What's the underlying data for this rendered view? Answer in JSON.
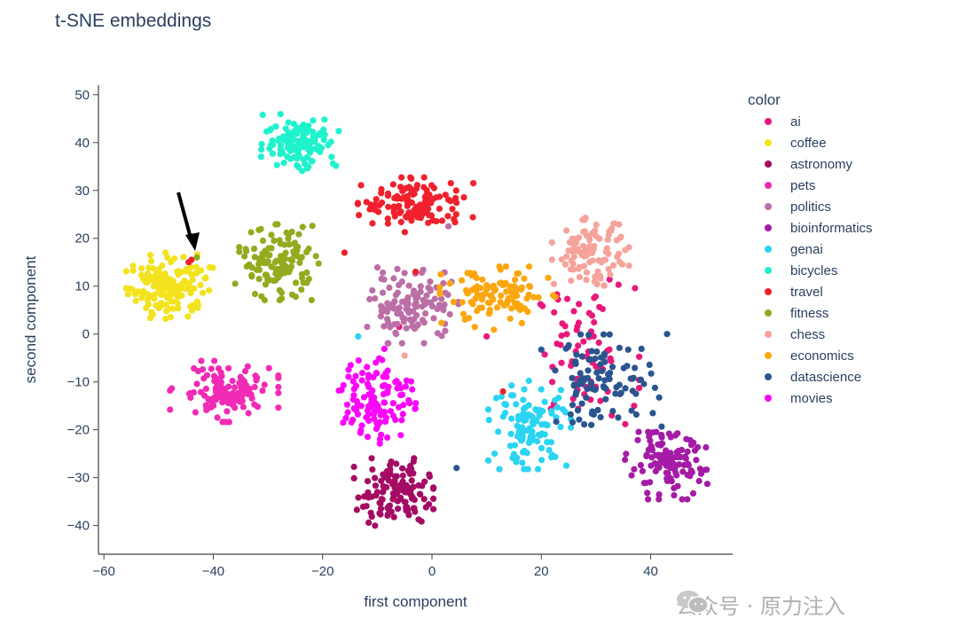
{
  "chart_data": {
    "type": "scatter",
    "title": "t-SNE embeddings",
    "xlabel": "first component",
    "ylabel": "second component",
    "xlim": [
      -61,
      55
    ],
    "ylim": [
      -46,
      52
    ],
    "xticks": [
      -60,
      -40,
      -20,
      0,
      20,
      40
    ],
    "yticks": [
      -40,
      -30,
      -20,
      -10,
      0,
      10,
      20,
      30,
      40,
      50
    ],
    "grid": false,
    "legend_title": "color",
    "legend_position": "right",
    "series": [
      {
        "name": "ai",
        "color": "#e8197a",
        "clusters": [
          {
            "cx": 28,
            "cy": -4,
            "sx": 4.5,
            "sy": 7,
            "n": 75
          }
        ],
        "points": [
          [
            10,
            -0.5
          ],
          [
            22,
            -10
          ],
          [
            -6,
            1.5
          ]
        ]
      },
      {
        "name": "coffee",
        "color": "#f2e31d",
        "clusters": [
          {
            "cx": -48,
            "cy": 10,
            "sx": 3.6,
            "sy": 3.3,
            "n": 150
          }
        ],
        "points": []
      },
      {
        "name": "astronomy",
        "color": "#a40b62",
        "clusters": [
          {
            "cx": -7,
            "cy": -33,
            "sx": 3.3,
            "sy": 3.2,
            "n": 130
          }
        ],
        "points": []
      },
      {
        "name": "pets",
        "color": "#f12bb5",
        "clusters": [
          {
            "cx": -38,
            "cy": -12,
            "sx": 4.5,
            "sy": 2.9,
            "n": 120
          }
        ],
        "points": []
      },
      {
        "name": "politics",
        "color": "#bb6fa6",
        "clusters": [
          {
            "cx": -3.5,
            "cy": 6,
            "sx": 3.8,
            "sy": 3.6,
            "n": 120
          }
        ],
        "points": [
          [
            3,
            22.5
          ]
        ]
      },
      {
        "name": "bioinformatics",
        "color": "#a41ca5",
        "clusters": [
          {
            "cx": 43,
            "cy": -27.5,
            "sx": 3.5,
            "sy": 3.2,
            "n": 115
          }
        ],
        "points": []
      },
      {
        "name": "genai",
        "color": "#2bd4f2",
        "clusters": [
          {
            "cx": 18,
            "cy": -19,
            "sx": 3.5,
            "sy": 4.2,
            "n": 110
          }
        ],
        "points": [
          [
            -13.5,
            -0.5
          ]
        ]
      },
      {
        "name": "bicycles",
        "color": "#1ff2cd",
        "clusters": [
          {
            "cx": -24,
            "cy": 40,
            "sx": 3.3,
            "sy": 2.7,
            "n": 125
          }
        ],
        "points": []
      },
      {
        "name": "travel",
        "color": "#f0212d",
        "clusters": [
          {
            "cx": -3,
            "cy": 27,
            "sx": 4.8,
            "sy": 2.6,
            "n": 130
          }
        ],
        "points": [
          [
            -44,
            15.5
          ],
          [
            -16,
            17
          ],
          [
            -3,
            13
          ],
          [
            13,
            -12
          ],
          [
            -44.5,
            15
          ]
        ]
      },
      {
        "name": "fitness",
        "color": "#94aa1f",
        "clusters": [
          {
            "cx": -28,
            "cy": 15,
            "sx": 3.3,
            "sy": 3.6,
            "n": 125
          }
        ],
        "points": [
          [
            -43,
            16
          ],
          [
            -36,
            10.5
          ]
        ]
      },
      {
        "name": "chess",
        "color": "#f5a39b",
        "clusters": [
          {
            "cx": 29,
            "cy": 17,
            "sx": 3.2,
            "sy": 3.3,
            "n": 100
          }
        ],
        "points": [
          [
            -5,
            -4.5
          ]
        ]
      },
      {
        "name": "economics",
        "color": "#fca70f",
        "clusters": [
          {
            "cx": 12,
            "cy": 7.5,
            "sx": 4.8,
            "sy": 3.0,
            "n": 115
          }
        ],
        "points": []
      },
      {
        "name": "datascience",
        "color": "#2a558f",
        "clusters": [
          {
            "cx": 31,
            "cy": -10,
            "sx": 5.0,
            "sy": 4.5,
            "n": 100
          }
        ],
        "points": [
          [
            43,
            0
          ],
          [
            4.5,
            -28
          ]
        ]
      },
      {
        "name": "movies",
        "color": "#fa08f7",
        "clusters": [
          {
            "cx": -10,
            "cy": -13,
            "sx": 3.2,
            "sy": 4.5,
            "n": 120
          }
        ],
        "points": []
      }
    ]
  },
  "watermark": {
    "text": "公众号 · 原力注入",
    "icon": "wechat-icon"
  }
}
